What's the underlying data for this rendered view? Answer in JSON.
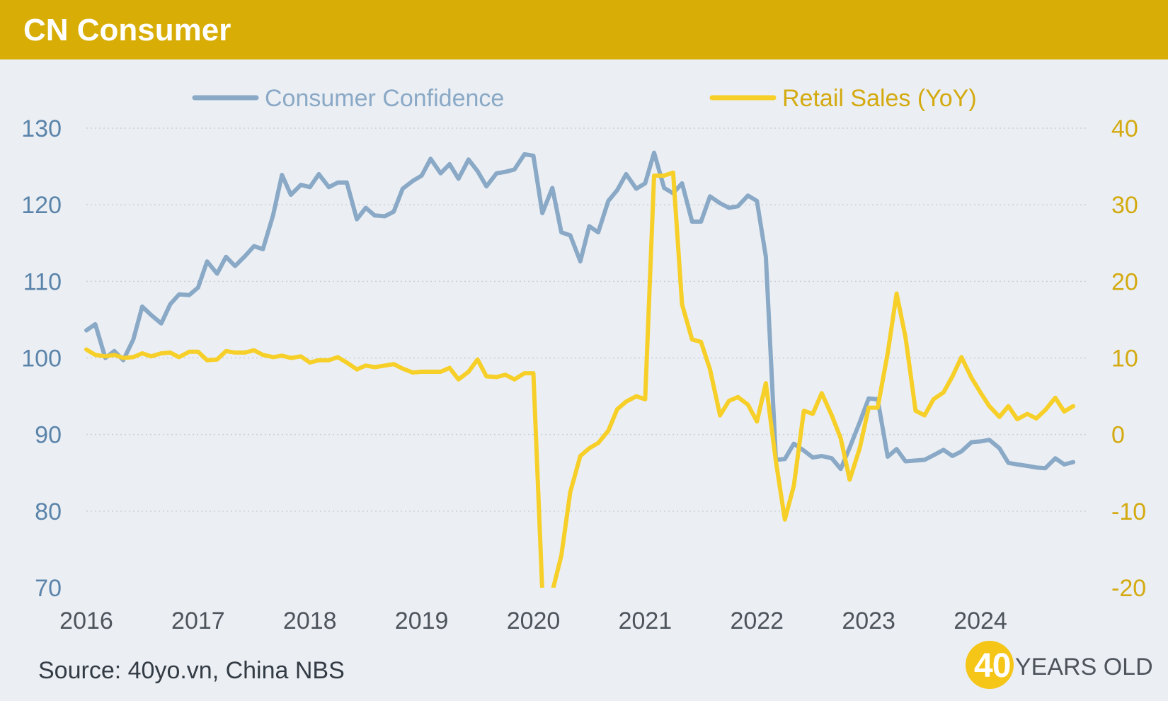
{
  "header": {
    "title": "CN Consumer"
  },
  "footer": {
    "source": "Source: 40yo.vn, China NBS"
  },
  "logo": {
    "number": "40",
    "text": "YEARS OLD"
  },
  "colors": {
    "header": "#d8ad06",
    "confidence": "#8aa9c6",
    "retail": "#f7cf29",
    "left_axis": "#5b84aa",
    "right_axis": "#d4aa10",
    "x_axis": "#4e545c"
  },
  "chart_data": {
    "type": "line",
    "legend_position": "top",
    "grid": true,
    "x_ticks": [
      "2016",
      "2017",
      "2018",
      "2019",
      "2020",
      "2021",
      "2022",
      "2023",
      "2024"
    ],
    "xlim": [
      2016,
      2024.95
    ],
    "left_axis": {
      "ylim": [
        70,
        130
      ],
      "ticks": [
        130,
        120,
        110,
        100,
        90,
        80,
        70
      ]
    },
    "right_axis": {
      "ylim": [
        -20,
        40
      ],
      "ticks": [
        40,
        30,
        20,
        10,
        0,
        -10,
        -20
      ]
    },
    "series": [
      {
        "name": "Consumer Confidence",
        "axis": "left",
        "points": [
          [
            2016.0,
            103.6
          ],
          [
            2016.08,
            104.4
          ],
          [
            2016.17,
            100.0
          ],
          [
            2016.25,
            100.9
          ],
          [
            2016.33,
            99.7
          ],
          [
            2016.42,
            102.4
          ],
          [
            2016.5,
            106.7
          ],
          [
            2016.58,
            105.6
          ],
          [
            2016.67,
            104.5
          ],
          [
            2016.75,
            107.0
          ],
          [
            2016.83,
            108.3
          ],
          [
            2016.92,
            108.2
          ],
          [
            2017.0,
            109.2
          ],
          [
            2017.08,
            112.6
          ],
          [
            2017.17,
            111.0
          ],
          [
            2017.25,
            113.2
          ],
          [
            2017.33,
            112.0
          ],
          [
            2017.42,
            113.3
          ],
          [
            2017.5,
            114.6
          ],
          [
            2017.58,
            114.2
          ],
          [
            2017.67,
            118.6
          ],
          [
            2017.75,
            123.9
          ],
          [
            2017.83,
            121.3
          ],
          [
            2017.92,
            122.6
          ],
          [
            2018.0,
            122.3
          ],
          [
            2018.08,
            124.0
          ],
          [
            2018.17,
            122.3
          ],
          [
            2018.25,
            122.9
          ],
          [
            2018.33,
            122.9
          ],
          [
            2018.42,
            118.1
          ],
          [
            2018.5,
            119.6
          ],
          [
            2018.58,
            118.6
          ],
          [
            2018.67,
            118.5
          ],
          [
            2018.75,
            119.1
          ],
          [
            2018.83,
            122.1
          ],
          [
            2018.92,
            123.1
          ],
          [
            2019.0,
            123.8
          ],
          [
            2019.08,
            126.0
          ],
          [
            2019.17,
            124.1
          ],
          [
            2019.25,
            125.3
          ],
          [
            2019.33,
            123.4
          ],
          [
            2019.42,
            125.9
          ],
          [
            2019.5,
            124.4
          ],
          [
            2019.58,
            122.4
          ],
          [
            2019.67,
            124.1
          ],
          [
            2019.75,
            124.3
          ],
          [
            2019.83,
            124.6
          ],
          [
            2019.92,
            126.6
          ],
          [
            2020.0,
            126.4
          ],
          [
            2020.08,
            118.9
          ],
          [
            2020.17,
            122.2
          ],
          [
            2020.25,
            116.4
          ],
          [
            2020.33,
            116.0
          ],
          [
            2020.42,
            112.6
          ],
          [
            2020.5,
            117.2
          ],
          [
            2020.58,
            116.4
          ],
          [
            2020.67,
            120.5
          ],
          [
            2020.75,
            121.9
          ],
          [
            2020.83,
            124.0
          ],
          [
            2020.92,
            122.1
          ],
          [
            2021.0,
            122.8
          ],
          [
            2021.08,
            126.8
          ],
          [
            2021.17,
            122.2
          ],
          [
            2021.25,
            121.5
          ],
          [
            2021.33,
            122.8
          ],
          [
            2021.42,
            117.8
          ],
          [
            2021.5,
            117.8
          ],
          [
            2021.58,
            121.1
          ],
          [
            2021.67,
            120.2
          ],
          [
            2021.75,
            119.6
          ],
          [
            2021.83,
            119.8
          ],
          [
            2021.92,
            121.2
          ],
          [
            2022.0,
            120.5
          ],
          [
            2022.08,
            113.2
          ],
          [
            2022.17,
            86.7
          ],
          [
            2022.25,
            86.8
          ],
          [
            2022.33,
            88.8
          ],
          [
            2022.42,
            87.9
          ],
          [
            2022.5,
            87.0
          ],
          [
            2022.58,
            87.2
          ],
          [
            2022.67,
            86.9
          ],
          [
            2022.75,
            85.5
          ],
          [
            2022.83,
            88.3
          ],
          [
            2022.92,
            91.6
          ],
          [
            2023.0,
            94.7
          ],
          [
            2023.08,
            94.6
          ],
          [
            2023.17,
            87.1
          ],
          [
            2023.25,
            88.1
          ],
          [
            2023.33,
            86.5
          ],
          [
            2023.42,
            86.6
          ],
          [
            2023.5,
            86.7
          ],
          [
            2023.58,
            87.3
          ],
          [
            2023.67,
            88.0
          ],
          [
            2023.75,
            87.2
          ],
          [
            2023.83,
            87.8
          ],
          [
            2023.92,
            89.0
          ],
          [
            2024.0,
            89.1
          ],
          [
            2024.08,
            89.3
          ],
          [
            2024.17,
            88.2
          ],
          [
            2024.25,
            86.3
          ],
          [
            2024.33,
            86.1
          ],
          [
            2024.42,
            85.9
          ],
          [
            2024.5,
            85.7
          ],
          [
            2024.58,
            85.6
          ],
          [
            2024.67,
            86.9
          ],
          [
            2024.75,
            86.1
          ],
          [
            2024.83,
            86.4
          ]
        ]
      },
      {
        "name": "Retail Sales (YoY)",
        "axis": "right",
        "points": [
          [
            2016.0,
            11.1
          ],
          [
            2016.08,
            10.4
          ],
          [
            2016.17,
            10.2
          ],
          [
            2016.25,
            10.4
          ],
          [
            2016.33,
            10.0
          ],
          [
            2016.42,
            10.1
          ],
          [
            2016.5,
            10.6
          ],
          [
            2016.58,
            10.2
          ],
          [
            2016.67,
            10.6
          ],
          [
            2016.75,
            10.7
          ],
          [
            2016.83,
            10.1
          ],
          [
            2016.92,
            10.8
          ],
          [
            2017.0,
            10.8
          ],
          [
            2017.08,
            9.7
          ],
          [
            2017.17,
            9.8
          ],
          [
            2017.25,
            10.9
          ],
          [
            2017.33,
            10.7
          ],
          [
            2017.42,
            10.7
          ],
          [
            2017.5,
            11.0
          ],
          [
            2017.58,
            10.4
          ],
          [
            2017.67,
            10.1
          ],
          [
            2017.75,
            10.3
          ],
          [
            2017.83,
            10.0
          ],
          [
            2017.92,
            10.2
          ],
          [
            2018.0,
            9.4
          ],
          [
            2018.08,
            9.7
          ],
          [
            2018.17,
            9.7
          ],
          [
            2018.25,
            10.1
          ],
          [
            2018.33,
            9.4
          ],
          [
            2018.42,
            8.5
          ],
          [
            2018.5,
            9.0
          ],
          [
            2018.58,
            8.8
          ],
          [
            2018.67,
            9.0
          ],
          [
            2018.75,
            9.2
          ],
          [
            2018.83,
            8.6
          ],
          [
            2018.92,
            8.1
          ],
          [
            2019.0,
            8.2
          ],
          [
            2019.08,
            8.2
          ],
          [
            2019.17,
            8.2
          ],
          [
            2019.25,
            8.7
          ],
          [
            2019.33,
            7.2
          ],
          [
            2019.42,
            8.2
          ],
          [
            2019.5,
            9.8
          ],
          [
            2019.58,
            7.6
          ],
          [
            2019.67,
            7.5
          ],
          [
            2019.75,
            7.8
          ],
          [
            2019.83,
            7.2
          ],
          [
            2019.92,
            8.0
          ],
          [
            2020.0,
            8.0
          ],
          [
            2020.08,
            -20.5
          ],
          [
            2020.17,
            -20.5
          ],
          [
            2020.25,
            -15.8
          ],
          [
            2020.33,
            -7.5
          ],
          [
            2020.42,
            -2.8
          ],
          [
            2020.5,
            -1.8
          ],
          [
            2020.58,
            -1.1
          ],
          [
            2020.67,
            0.5
          ],
          [
            2020.75,
            3.3
          ],
          [
            2020.83,
            4.3
          ],
          [
            2020.92,
            5.0
          ],
          [
            2021.0,
            4.6
          ],
          [
            2021.08,
            33.8
          ],
          [
            2021.17,
            33.8
          ],
          [
            2021.25,
            34.2
          ],
          [
            2021.33,
            17.0
          ],
          [
            2021.42,
            12.4
          ],
          [
            2021.5,
            12.1
          ],
          [
            2021.58,
            8.5
          ],
          [
            2021.67,
            2.5
          ],
          [
            2021.75,
            4.4
          ],
          [
            2021.83,
            4.9
          ],
          [
            2021.92,
            3.9
          ],
          [
            2022.0,
            1.7
          ],
          [
            2022.08,
            6.7
          ],
          [
            2022.17,
            -3.5
          ],
          [
            2022.25,
            -11.1
          ],
          [
            2022.33,
            -6.7
          ],
          [
            2022.42,
            3.1
          ],
          [
            2022.5,
            2.7
          ],
          [
            2022.58,
            5.4
          ],
          [
            2022.67,
            2.5
          ],
          [
            2022.75,
            -0.5
          ],
          [
            2022.83,
            -5.9
          ],
          [
            2022.92,
            -1.8
          ],
          [
            2023.0,
            3.5
          ],
          [
            2023.08,
            3.5
          ],
          [
            2023.17,
            10.6
          ],
          [
            2023.25,
            18.4
          ],
          [
            2023.33,
            12.7
          ],
          [
            2023.42,
            3.1
          ],
          [
            2023.5,
            2.5
          ],
          [
            2023.58,
            4.6
          ],
          [
            2023.67,
            5.5
          ],
          [
            2023.75,
            7.6
          ],
          [
            2023.83,
            10.1
          ],
          [
            2023.92,
            7.4
          ],
          [
            2024.0,
            5.5
          ],
          [
            2024.08,
            3.7
          ],
          [
            2024.17,
            2.3
          ],
          [
            2024.25,
            3.7
          ],
          [
            2024.33,
            2.0
          ],
          [
            2024.42,
            2.7
          ],
          [
            2024.5,
            2.1
          ],
          [
            2024.58,
            3.2
          ],
          [
            2024.67,
            4.8
          ],
          [
            2024.75,
            3.0
          ],
          [
            2024.83,
            3.7
          ]
        ]
      }
    ]
  }
}
